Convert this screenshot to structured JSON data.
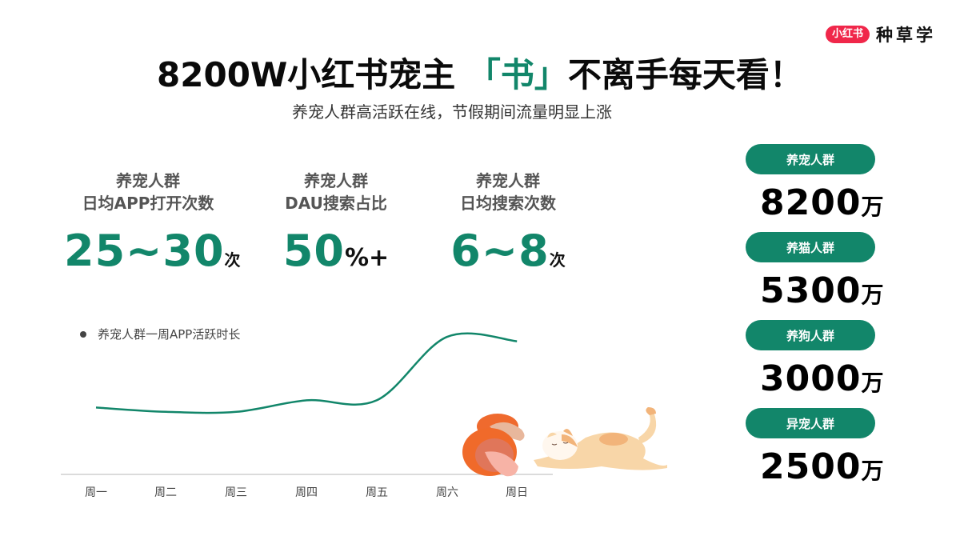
{
  "brand": {
    "badge": "小红书",
    "name": "种草学"
  },
  "header": {
    "title_prefix": "8200W小红书宠主 ",
    "title_accent": "「书」",
    "title_suffix": "不离手每天看！",
    "subtitle": "养宠人群高活跃在线，节假期间流量明显上涨"
  },
  "stats": [
    {
      "label_line1": "养宠人群",
      "label_line2": "日均APP打开次数",
      "value": "25~30",
      "unit": "次"
    },
    {
      "label_line1": "养宠人群",
      "label_line2": "DAU搜索占比",
      "value": "50",
      "unit": "%+"
    },
    {
      "label_line1": "养宠人群",
      "label_line2": "日均搜索次数",
      "value": "6~8",
      "unit": "次"
    }
  ],
  "groups": [
    {
      "label": "养宠人群",
      "value": "8200",
      "unit": "万"
    },
    {
      "label": "养猫人群",
      "value": "5300",
      "unit": "万"
    },
    {
      "label": "养狗人群",
      "value": "3000",
      "unit": "万"
    },
    {
      "label": "异宠人群",
      "value": "2500",
      "unit": "万"
    }
  ],
  "colors": {
    "accent": "#12866a",
    "brand_red": "#f0274a",
    "text": "#111111"
  },
  "chart_data": {
    "type": "line",
    "title": "",
    "legend": [
      "养宠人群一周APP活跃时长"
    ],
    "legend_position": "top-left",
    "categories": [
      "周一",
      "周二",
      "周三",
      "周四",
      "周五",
      "周六",
      "周日"
    ],
    "series": [
      {
        "name": "养宠人群一周APP活跃时长",
        "values": [
          42,
          39,
          39,
          47,
          47,
          91,
          88
        ],
        "color": "#12866a"
      }
    ],
    "xlabel": "",
    "ylabel": "",
    "y_axis_visible": false,
    "ylim": [
      0,
      100
    ],
    "grid": false,
    "smooth": true
  }
}
